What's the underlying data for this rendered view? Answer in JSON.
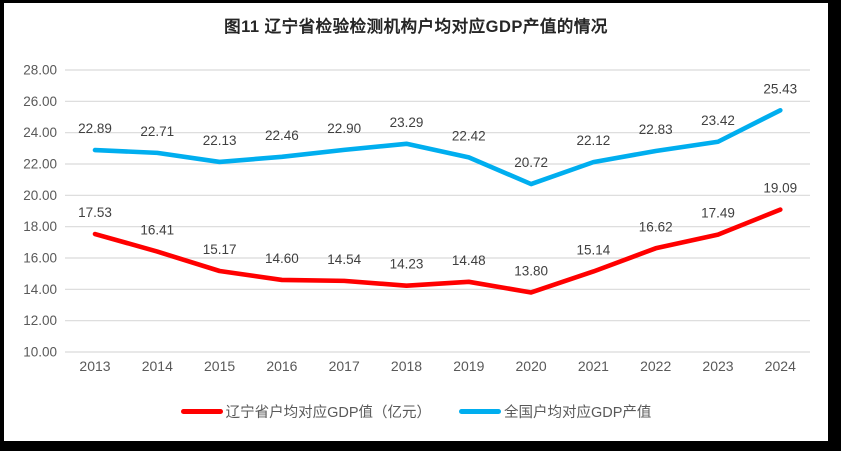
{
  "chart_data": {
    "type": "line",
    "title": "图11 辽宁省检验检测机构户均对应GDP产值的情况",
    "categories": [
      "2013",
      "2014",
      "2015",
      "2016",
      "2017",
      "2018",
      "2019",
      "2020",
      "2021",
      "2022",
      "2023",
      "2024"
    ],
    "series": [
      {
        "name": "辽宁省户均对应GDP值（亿元）",
        "color": "#ff0000",
        "values": [
          17.53,
          16.41,
          15.17,
          14.6,
          14.54,
          14.23,
          14.48,
          13.8,
          15.14,
          16.62,
          17.49,
          19.09
        ]
      },
      {
        "name": "全国户均对应GDP产值",
        "color": "#00aeef",
        "values": [
          22.89,
          22.71,
          22.13,
          22.46,
          22.9,
          23.29,
          22.42,
          20.72,
          22.12,
          22.83,
          23.42,
          25.43
        ]
      }
    ],
    "xlabel": "",
    "ylabel": "",
    "ylim": [
      10,
      28
    ],
    "ytick_step": 2,
    "ytick_labels": [
      "10.00",
      "12.00",
      "14.00",
      "16.00",
      "18.00",
      "20.00",
      "22.00",
      "24.00",
      "26.00",
      "28.00"
    ],
    "grid": true,
    "data_labels": true,
    "legend_position": "bottom"
  },
  "colors": {
    "grid": "#d9d9d9",
    "axis_text": "#595959",
    "data_label_text": "#404040",
    "series_red": "#ff0000",
    "series_blue": "#00aeef",
    "chart_background": "#ffffff",
    "frame": "#000000"
  }
}
